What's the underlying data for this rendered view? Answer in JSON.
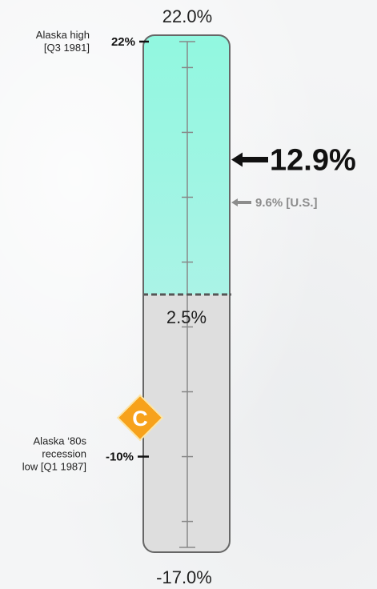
{
  "chart_data": {
    "type": "thermometer-gauge",
    "scale_top": "22.0%",
    "scale_bottom": "-17.0%",
    "ylim": [
      -17.0,
      22.0
    ],
    "baseline": {
      "label": "2.5%",
      "value": 2.5
    },
    "current": {
      "label": "12.9%",
      "value": 12.9
    },
    "us_reference": {
      "label": "9.6% [U.S.]",
      "value": 9.6
    },
    "high": {
      "value": 22.0,
      "tick_label": "22%",
      "note_line1": "Alaska high",
      "note_line2": "[Q3 1981]"
    },
    "low": {
      "value": -10.0,
      "tick_label": "-10%",
      "note_line1": "Alaska ‘80s",
      "note_line2": "recession",
      "note_line3": "low [Q1 1987]"
    },
    "grade": {
      "letter": "C",
      "value": -7.0
    },
    "minor_ticks": [
      -15,
      -10,
      -5,
      0,
      5,
      10,
      15,
      20
    ],
    "colors": {
      "fill_above": "#9ff5e2",
      "fill_below": "#dedede",
      "frame": "#666666",
      "current_arrow": "#111111",
      "us_arrow": "#8c8c8c",
      "grade_badge": "#f7a21b",
      "grade_letter": "#ffffff"
    }
  }
}
